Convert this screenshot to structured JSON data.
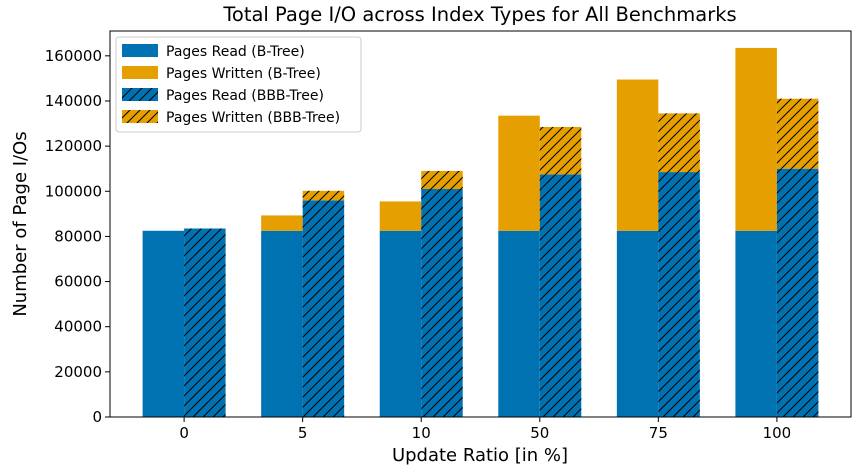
{
  "chart_data": {
    "type": "bar",
    "title": "Total Page I/O across Index Types for All Benchmarks",
    "xlabel": "Update Ratio [in %]",
    "ylabel": "Number of Page I/Os",
    "categories": [
      "0",
      "5",
      "10",
      "50",
      "75",
      "100"
    ],
    "ylim": [
      0,
      171000
    ],
    "yticks": [
      0,
      20000,
      40000,
      60000,
      80000,
      100000,
      120000,
      140000,
      160000
    ],
    "ytick_labels": [
      "0",
      "20000",
      "40000",
      "60000",
      "80000",
      "100000",
      "120000",
      "140000",
      "160000"
    ],
    "grid": false,
    "legend_position": "top-left",
    "series": [
      {
        "name": "Pages Read (B-Tree)",
        "group": "B-Tree",
        "stack": "bottom",
        "color": "#0072B2",
        "hatch": false,
        "values": [
          82500,
          82500,
          82500,
          82500,
          82500,
          82500
        ]
      },
      {
        "name": "Pages Written (B-Tree)",
        "group": "B-Tree",
        "stack": "top",
        "color": "#E69F00",
        "hatch": false,
        "values": [
          0,
          6800,
          13000,
          51000,
          67000,
          81000
        ]
      },
      {
        "name": "Pages Read (BBB-Tree)",
        "group": "BBB-Tree",
        "stack": "bottom",
        "color": "#0072B2",
        "hatch": true,
        "values": [
          83500,
          96000,
          101000,
          107500,
          108500,
          110000
        ]
      },
      {
        "name": "Pages Written (BBB-Tree)",
        "group": "BBB-Tree",
        "stack": "top",
        "color": "#E69F00",
        "hatch": true,
        "values": [
          0,
          4200,
          8000,
          21000,
          26000,
          31000
        ]
      }
    ]
  }
}
